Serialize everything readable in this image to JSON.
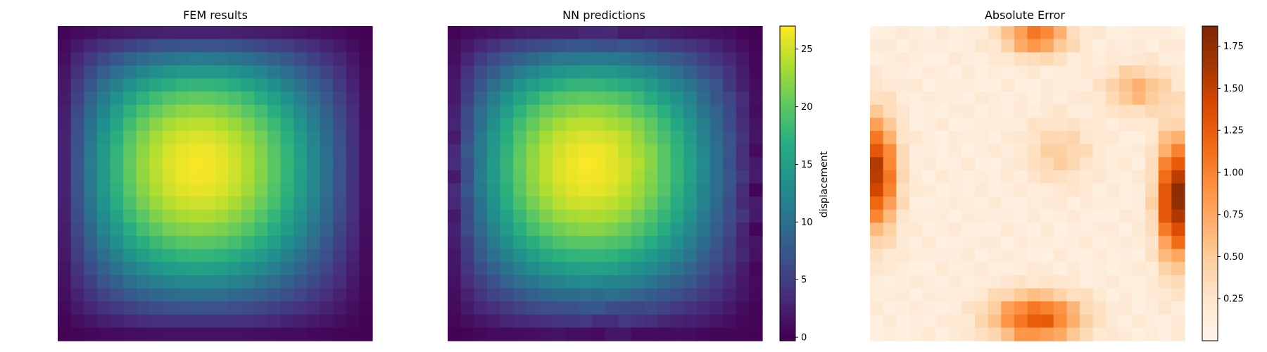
{
  "figure": {
    "background": "#ffffff"
  },
  "chart_data": [
    {
      "type": "heatmap",
      "title": "FEM results",
      "grid_size": [
        24,
        24
      ],
      "colormap": "viridis",
      "value_range": [
        0,
        27
      ],
      "axes_visible": false,
      "description": "Smooth bump: peak ≈ 26.8 slightly left of center and above middle, near 0 at the edges",
      "values": []
    },
    {
      "type": "heatmap",
      "title": "NN predictions",
      "grid_size": [
        24,
        24
      ],
      "colormap": "viridis",
      "value_range": [
        0,
        27
      ],
      "axes_visible": false,
      "values": [],
      "colorbar": {
        "label": "displacement",
        "ticks": [
          0,
          5,
          10,
          15,
          20,
          25
        ],
        "tick_labels": [
          "0",
          "5",
          "10",
          "15",
          "20",
          "25"
        ],
        "range": [
          -0.3,
          27
        ]
      }
    },
    {
      "type": "heatmap",
      "title": "Absolute Error",
      "grid_size": [
        24,
        24
      ],
      "colormap": "Oranges",
      "value_range": [
        0,
        1.87
      ],
      "axes_visible": false,
      "values": [],
      "colorbar": {
        "label": "",
        "ticks": [
          0.25,
          0.5,
          0.75,
          1.0,
          1.25,
          1.5,
          1.75
        ],
        "tick_labels": [
          "0.25",
          "0.50",
          "0.75",
          "1.00",
          "1.25",
          "1.50",
          "1.75"
        ],
        "range": [
          0,
          1.87
        ]
      }
    }
  ]
}
